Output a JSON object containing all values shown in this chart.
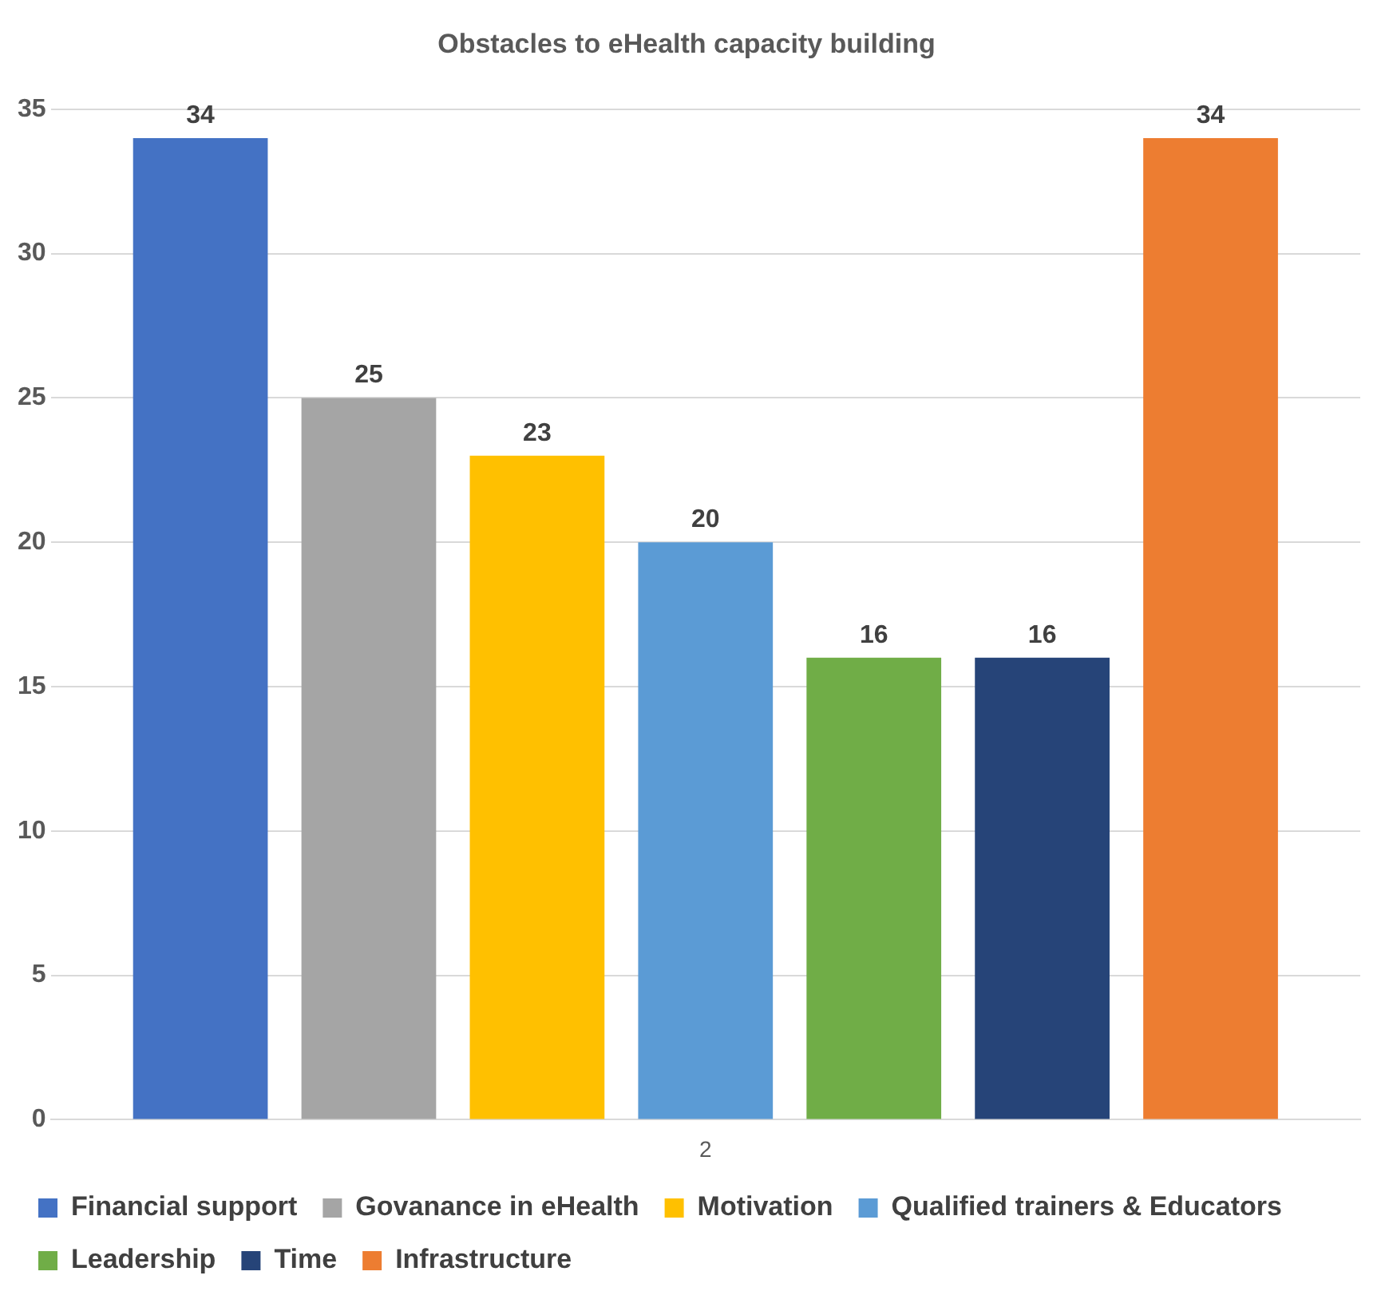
{
  "chart_data": {
    "type": "bar",
    "title": "Obstacles to eHealth capacity building",
    "categories": [
      "2"
    ],
    "series": [
      {
        "name": "Financial support",
        "color": "#4472c4",
        "values": [
          34
        ]
      },
      {
        "name": "Govanance in eHealth",
        "color": "#a5a5a5",
        "values": [
          25
        ]
      },
      {
        "name": "Motivation",
        "color": "#ffc000",
        "values": [
          23
        ]
      },
      {
        "name": "Qualified trainers & Educators",
        "color": "#5b9bd5",
        "values": [
          20
        ]
      },
      {
        "name": "Leadership",
        "color": "#70ad47",
        "values": [
          16
        ]
      },
      {
        "name": "Time",
        "color": "#264478",
        "values": [
          16
        ]
      },
      {
        "name": "Infrastructure",
        "color": "#ed7d31",
        "values": [
          34
        ]
      }
    ],
    "ylim": [
      0,
      35
    ],
    "yticks": [
      0,
      5,
      10,
      15,
      20,
      25,
      30,
      35
    ],
    "grid": "y",
    "legend": "bottom",
    "data_labels": true
  }
}
